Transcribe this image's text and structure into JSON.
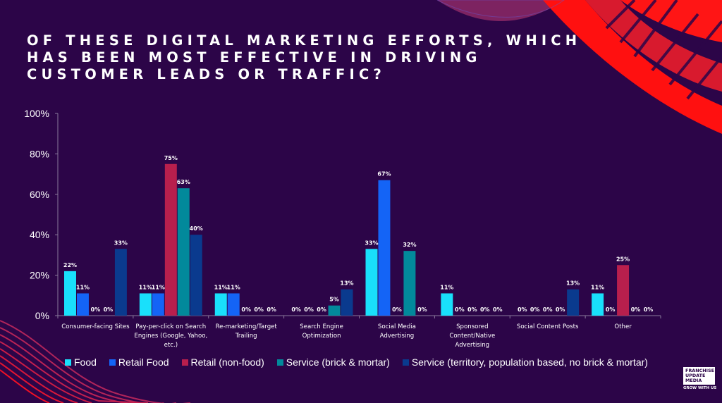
{
  "title_lines": [
    "OF THESE DIGITAL MARKETING EFFORTS, WHICH",
    "HAS BEEN MOST EFFECTIVE IN DRIVING",
    "CUSTOMER LEADS OR TRAFFIC?"
  ],
  "chart_data": {
    "type": "bar",
    "title": "OF THESE DIGITAL MARKETING EFFORTS, WHICH HAS BEEN MOST EFFECTIVE IN DRIVING CUSTOMER LEADS OR TRAFFIC?",
    "xlabel": "",
    "ylabel": "",
    "ylim": [
      0,
      100
    ],
    "yticks": [
      "0%",
      "20%",
      "40%",
      "60%",
      "80%",
      "100%"
    ],
    "grid": false,
    "legend_position": "bottom",
    "categories": [
      [
        "Consumer-facing Sites"
      ],
      [
        "Pay-per-click on Search",
        "Engines (Google, Yahoo,",
        "etc.)"
      ],
      [
        "Re-marketing/Target",
        "Trailing"
      ],
      [
        "Search Engine",
        "Optimization"
      ],
      [
        "Social Media",
        "Advertising"
      ],
      [
        "Sponsored",
        "Content/Native",
        "Advertising"
      ],
      [
        "Social Content Posts"
      ],
      [
        "Other"
      ]
    ],
    "series": [
      {
        "name": "Food",
        "color": "#19e0fb",
        "values": [
          22,
          11,
          11,
          0,
          33,
          11,
          0,
          11
        ]
      },
      {
        "name": "Retail Food",
        "color": "#1464f6",
        "values": [
          11,
          11,
          11,
          0,
          67,
          0,
          0,
          0
        ]
      },
      {
        "name": "Retail (non-food)",
        "color": "#b81f4d",
        "values": [
          0,
          75,
          0,
          0,
          0,
          0,
          0,
          25
        ]
      },
      {
        "name": "Service (brick & mortar)",
        "color": "#02899b",
        "values": [
          0,
          63,
          0,
          5,
          32,
          0,
          0,
          0
        ]
      },
      {
        "name": "Service (territory, population based, no brick & mortar)",
        "color": "#0a3a8e",
        "values": [
          33,
          40,
          0,
          13,
          0,
          0,
          13,
          0
        ]
      }
    ]
  },
  "logo": {
    "lines": [
      "FRANCHISE",
      "UPDATE",
      "MEDIA"
    ],
    "tagline": "GROW WITH US"
  },
  "colors": {
    "background": "#2c0548",
    "accent_red": "#ff1a1a"
  }
}
